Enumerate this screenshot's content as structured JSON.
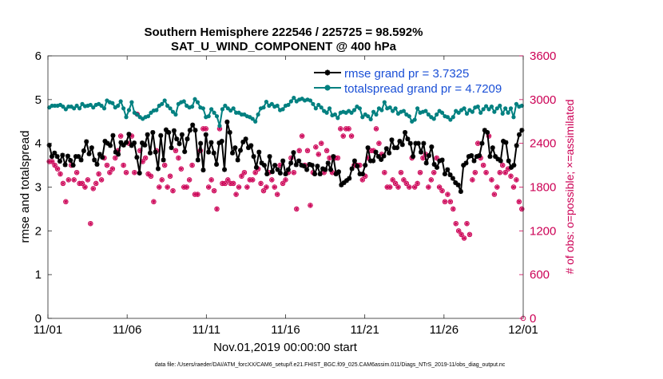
{
  "chart_data": {
    "type": "line",
    "title_line1": "Southern Hemisphere 222546 / 225725 = 98.592%",
    "title_line2": "SAT_U_WIND_COMPONENT @ 400 hPa",
    "xlabel": "Nov.01,2019 00:00:00 start",
    "ylabel_left": "rmse and totalspread",
    "ylabel_right": "# of obs: o=possible; ×=assimilated",
    "footer": "data file: /Users/raeder/DAI/ATM_forcXX/CAM6_setup/f.e21.FHIST_BGC.f09_025.CAM6assim.011/Diags_NTrS_2019-11/obs_diag_output.nc",
    "x_ticks": [
      "11/01",
      "11/06",
      "11/11",
      "11/16",
      "11/21",
      "11/26",
      "12/01"
    ],
    "xlim": [
      0,
      30
    ],
    "ylim_left": [
      0,
      6
    ],
    "y_ticks_left": [
      "0",
      "1",
      "2",
      "3",
      "4",
      "5",
      "6"
    ],
    "ylim_right": [
      0,
      3600
    ],
    "y_ticks_right": [
      "0",
      "600",
      "1200",
      "1800",
      "2400",
      "3000",
      "3600"
    ],
    "colors": {
      "rmse": "#000000",
      "spread": "#008080",
      "obs": "#cc0055",
      "legend_text": "#1a4fd6"
    },
    "series": [
      {
        "name": "rmse grand pr = 3.7325",
        "key": "rmse",
        "values": [
          3.96,
          3.7,
          3.78,
          3.7,
          3.59,
          3.73,
          3.51,
          3.71,
          3.61,
          3.5,
          3.7,
          3.7,
          3.62,
          3.83,
          4.04,
          3.76,
          3.9,
          3.62,
          3.52,
          3.75,
          3.68,
          4.05,
          4.0,
          3.95,
          4.18,
          3.8,
          3.75,
          4.02,
          3.96,
          4.02,
          4.21,
          3.95,
          4.01,
          3.68,
          3.32,
          4.01,
          3.96,
          4.2,
          3.78,
          4.25,
          3.8,
          3.42,
          4.18,
          3.62,
          4.31,
          4.25,
          3.9,
          4.29,
          4.1,
          3.99,
          4.2,
          3.81,
          4.1,
          4.3,
          4.42,
          4.3,
          3.62,
          4.0,
          3.39,
          4.2,
          3.8,
          4.02,
          3.78,
          3.52,
          4.01,
          4.05,
          3.4,
          4.49,
          4.25,
          3.78,
          3.9,
          3.62,
          3.84,
          4.03,
          4.1,
          3.9,
          3.95,
          3.7,
          3.45,
          3.8,
          3.55,
          3.5,
          3.3,
          3.7,
          3.35,
          3.5,
          3.4,
          3.32,
          3.6,
          3.3,
          3.4,
          3.55,
          3.79,
          3.51,
          3.6,
          3.5,
          3.48,
          3.4,
          3.52,
          3.5,
          3.3,
          3.48,
          3.3,
          3.42,
          3.4,
          3.55,
          3.4,
          3.7,
          3.3,
          3.35,
          3.05,
          3.1,
          3.15,
          3.2,
          3.42,
          3.6,
          3.48,
          3.3,
          3.3,
          3.5,
          3.9,
          3.6,
          3.6,
          3.8,
          3.7,
          3.63,
          3.71,
          3.88,
          3.78,
          4.08,
          3.9,
          3.9,
          4.05,
          3.97,
          4.25,
          4.1,
          4.0,
          3.7,
          4.0,
          4.0,
          3.8,
          4.0,
          3.55,
          3.72,
          3.92,
          3.52,
          3.45,
          3.6,
          3.62,
          3.3,
          3.4,
          3.28,
          3.2,
          3.1,
          3.05,
          2.9,
          3.5,
          3.55,
          3.7,
          3.72,
          3.6,
          3.7,
          3.72,
          4.0,
          4.3,
          4.25,
          3.7,
          3.9,
          3.7,
          3.64,
          3.6,
          4.05,
          4.02,
          3.6,
          3.45,
          3.5,
          3.95,
          4.2,
          4.3
        ]
      },
      {
        "name": "totalspread grand pr = 4.7209",
        "key": "spread",
        "values": [
          4.82,
          4.86,
          4.86,
          4.86,
          4.88,
          4.84,
          4.78,
          4.84,
          4.84,
          4.8,
          4.86,
          4.8,
          4.9,
          4.85,
          4.86,
          4.88,
          4.82,
          4.88,
          4.9,
          4.86,
          4.8,
          4.98,
          4.94,
          4.92,
          4.82,
          4.86,
          4.96,
          4.8,
          4.6,
          4.76,
          4.94,
          4.7,
          4.66,
          4.6,
          4.56,
          4.6,
          4.62,
          4.7,
          4.75,
          4.76,
          4.86,
          4.9,
          4.98,
          4.86,
          4.8,
          4.72,
          4.66,
          4.9,
          4.94,
          4.96,
          4.86,
          4.82,
          4.84,
          5.01,
          4.94,
          4.82,
          4.8,
          4.6,
          4.62,
          4.78,
          4.7,
          4.62,
          4.4,
          4.78,
          4.86,
          4.8,
          4.75,
          4.8,
          4.7,
          4.7,
          4.66,
          4.66,
          4.62,
          4.6,
          4.56,
          4.5,
          4.66,
          4.8,
          4.82,
          4.95,
          4.86,
          4.9,
          4.84,
          4.86,
          4.76,
          4.78,
          4.86,
          4.88,
          4.96,
          5.04,
          4.96,
          5.0,
          5.02,
          4.98,
          5.0,
          4.98,
          4.9,
          4.8,
          4.88,
          4.82,
          4.74,
          4.7,
          4.8,
          4.64,
          4.66,
          4.58,
          4.7,
          4.72,
          4.7,
          4.74,
          4.7,
          4.76,
          4.84,
          4.8,
          4.6,
          4.66,
          4.62,
          4.55,
          4.72,
          4.66,
          4.8,
          4.76,
          4.94,
          4.8,
          4.82,
          4.74,
          4.8,
          4.68,
          4.72,
          4.74,
          4.66,
          4.62,
          4.5,
          4.54,
          4.8,
          4.7,
          4.72,
          4.74,
          4.66,
          4.6,
          4.56,
          4.66,
          4.74,
          4.7,
          4.62,
          4.6,
          4.54,
          4.6,
          4.74,
          4.7,
          4.76,
          4.8,
          4.68,
          4.76,
          4.72,
          4.82,
          4.84,
          4.7,
          4.78,
          4.85,
          4.78,
          4.84,
          4.72,
          4.8,
          4.86,
          4.68,
          4.8,
          4.7,
          4.8,
          4.6,
          4.9,
          4.84,
          4.86
        ]
      }
    ],
    "obs_possible": [
      2150,
      2150,
      2100,
      2050,
      1980,
      1850,
      1600,
      1900,
      2100,
      1900,
      2000,
      1850,
      1850,
      1800,
      1900,
      1300,
      1780,
      1850,
      1980,
      1900,
      2200,
      2100,
      2000,
      2050,
      2200,
      2300,
      2500,
      2100,
      2000,
      2400,
      2500,
      2000,
      2800,
      2300,
      2150,
      2200,
      1980,
      1950,
      1600,
      2300,
      1800,
      1900,
      2100,
      1800,
      1950,
      1750,
      2300,
      2200,
      2050,
      1800,
      1800,
      1900,
      2100,
      1700,
      1700,
      2300,
      2600,
      2600,
      1800,
      1900,
      1750,
      1500,
      2600,
      1850,
      1850,
      1900,
      1850,
      1850,
      1700,
      1800,
      1950,
      2000,
      1800,
      1900,
      1900,
      2000,
      2050,
      1850,
      1750,
      1800,
      2000,
      1900,
      1800,
      1700,
      2100,
      1850,
      1900,
      2000,
      2200,
      2000,
      1500,
      2300,
      2500,
      2100,
      2300,
      1550,
      2000,
      2350,
      2250,
      2400,
      2000,
      2300,
      2200,
      2000,
      2200,
      2200,
      2600,
      2500,
      2600,
      2600,
      2500,
      2100,
      2100,
      2100,
      1900,
      1950,
      2200,
      2300,
      2300,
      2600,
      2400,
      2250,
      2000,
      1800,
      1800,
      1900,
      1850,
      1800,
      2000,
      1900,
      1850,
      1800,
      2200,
      1800,
      1850,
      2000,
      2200,
      2250,
      1800,
      1900,
      2000,
      2200,
      1800,
      1750,
      1600,
      1700,
      1600,
      1500,
      1300,
      1200,
      1150,
      1100,
      1300,
      1150,
      1900,
      2000,
      2400,
      2200,
      2100,
      2000,
      2500,
      1900,
      1700,
      1800,
      2000,
      2100,
      2000,
      2050,
      1950,
      1800,
      1900,
      1600,
      1500
    ]
  },
  "legend_labels": [
    "rmse grand pr = 3.7325",
    "totalspread grand pr = 4.7209"
  ]
}
